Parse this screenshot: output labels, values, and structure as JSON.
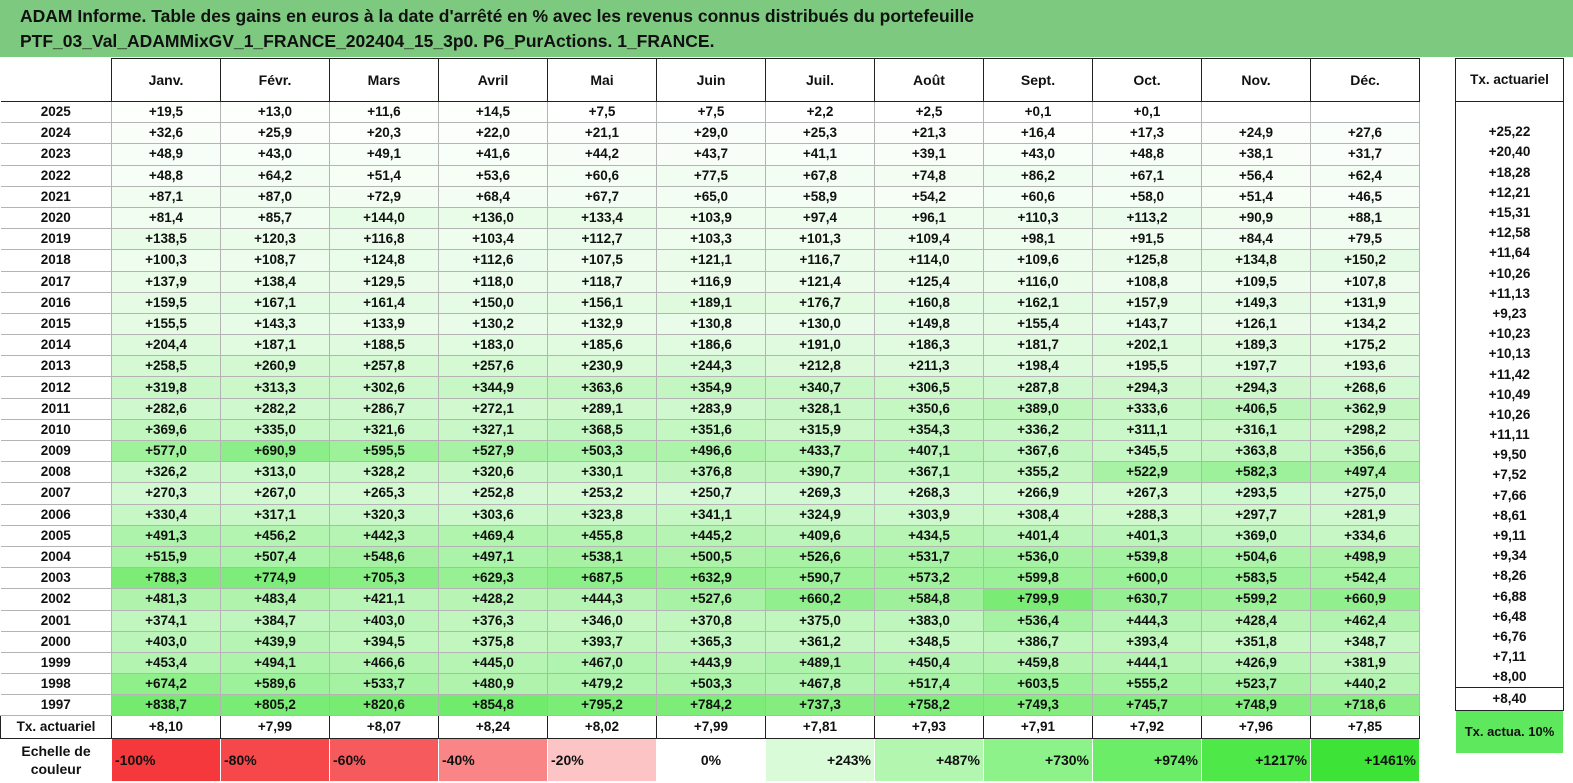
{
  "title": {
    "line1": "ADAM Informe. Table des gains en euros à la date d'arrêté en % avec les revenus connus distribués du portefeuille",
    "line2": "PTF_03_Val_ADAMMixGV_1_FRANCE_202404_15_3p0. P6_PurActions. 1_FRANCE."
  },
  "months": [
    "Janv.",
    "Févr.",
    "Mars",
    "Avril",
    "Mai",
    "Juin",
    "Juil.",
    "Août",
    "Sept.",
    "Oct.",
    "Nov.",
    "Déc."
  ],
  "rate_header": "Tx. actuariel",
  "rows": [
    {
      "year": "2025",
      "values": [
        "+19,5",
        "+13,0",
        "+11,6",
        "+14,5",
        "+7,5",
        "+7,5",
        "+2,2",
        "+2,5",
        "+0,1",
        "+0,1",
        "",
        ""
      ],
      "rate": ""
    },
    {
      "year": "2024",
      "values": [
        "+32,6",
        "+25,9",
        "+20,3",
        "+22,0",
        "+21,1",
        "+29,0",
        "+25,3",
        "+21,3",
        "+16,4",
        "+17,3",
        "+24,9",
        "+27,6"
      ],
      "rate": "+25,22"
    },
    {
      "year": "2023",
      "values": [
        "+48,9",
        "+43,0",
        "+49,1",
        "+41,6",
        "+44,2",
        "+43,7",
        "+41,1",
        "+39,1",
        "+43,0",
        "+48,8",
        "+38,1",
        "+31,7"
      ],
      "rate": "+20,40"
    },
    {
      "year": "2022",
      "values": [
        "+48,8",
        "+64,2",
        "+51,4",
        "+53,6",
        "+60,6",
        "+77,5",
        "+67,8",
        "+74,8",
        "+86,2",
        "+67,1",
        "+56,4",
        "+62,4"
      ],
      "rate": "+18,28"
    },
    {
      "year": "2021",
      "values": [
        "+87,1",
        "+87,0",
        "+72,9",
        "+68,4",
        "+67,7",
        "+65,0",
        "+58,9",
        "+54,2",
        "+60,6",
        "+58,0",
        "+51,4",
        "+46,5"
      ],
      "rate": "+12,21"
    },
    {
      "year": "2020",
      "values": [
        "+81,4",
        "+85,7",
        "+144,0",
        "+136,0",
        "+133,4",
        "+103,9",
        "+97,4",
        "+96,1",
        "+110,3",
        "+113,2",
        "+90,9",
        "+88,1"
      ],
      "rate": "+15,31"
    },
    {
      "year": "2019",
      "values": [
        "+138,5",
        "+120,3",
        "+116,8",
        "+103,4",
        "+112,7",
        "+103,3",
        "+101,3",
        "+109,4",
        "+98,1",
        "+91,5",
        "+84,4",
        "+79,5"
      ],
      "rate": "+12,58"
    },
    {
      "year": "2018",
      "values": [
        "+100,3",
        "+108,7",
        "+124,8",
        "+112,6",
        "+107,5",
        "+121,1",
        "+116,7",
        "+114,0",
        "+109,6",
        "+125,8",
        "+134,8",
        "+150,2"
      ],
      "rate": "+11,64"
    },
    {
      "year": "2017",
      "values": [
        "+137,9",
        "+138,4",
        "+129,5",
        "+118,0",
        "+118,7",
        "+116,9",
        "+121,4",
        "+125,4",
        "+116,0",
        "+108,8",
        "+109,5",
        "+107,8"
      ],
      "rate": "+10,26"
    },
    {
      "year": "2016",
      "values": [
        "+159,5",
        "+167,1",
        "+161,4",
        "+150,0",
        "+156,1",
        "+189,1",
        "+176,7",
        "+160,8",
        "+162,1",
        "+157,9",
        "+149,3",
        "+131,9"
      ],
      "rate": "+11,13"
    },
    {
      "year": "2015",
      "values": [
        "+155,5",
        "+143,3",
        "+133,9",
        "+130,2",
        "+132,9",
        "+130,8",
        "+130,0",
        "+149,8",
        "+155,4",
        "+143,7",
        "+126,1",
        "+134,2"
      ],
      "rate": "+9,23"
    },
    {
      "year": "2014",
      "values": [
        "+204,4",
        "+187,1",
        "+188,5",
        "+183,0",
        "+185,6",
        "+186,6",
        "+191,0",
        "+186,3",
        "+181,7",
        "+202,1",
        "+189,3",
        "+175,2"
      ],
      "rate": "+10,23"
    },
    {
      "year": "2013",
      "values": [
        "+258,5",
        "+260,9",
        "+257,8",
        "+257,6",
        "+230,9",
        "+244,3",
        "+212,8",
        "+211,3",
        "+198,4",
        "+195,5",
        "+197,7",
        "+193,6"
      ],
      "rate": "+10,13"
    },
    {
      "year": "2012",
      "values": [
        "+319,8",
        "+313,3",
        "+302,6",
        "+344,9",
        "+363,6",
        "+354,9",
        "+340,7",
        "+306,5",
        "+287,8",
        "+294,3",
        "+294,3",
        "+268,6"
      ],
      "rate": "+11,42"
    },
    {
      "year": "2011",
      "values": [
        "+282,6",
        "+282,2",
        "+286,7",
        "+272,1",
        "+289,1",
        "+283,9",
        "+328,1",
        "+350,6",
        "+389,0",
        "+333,6",
        "+406,5",
        "+362,9"
      ],
      "rate": "+10,49"
    },
    {
      "year": "2010",
      "values": [
        "+369,6",
        "+335,0",
        "+321,6",
        "+327,1",
        "+368,5",
        "+351,6",
        "+315,9",
        "+354,3",
        "+336,2",
        "+311,1",
        "+316,1",
        "+298,2"
      ],
      "rate": "+10,26"
    },
    {
      "year": "2009",
      "values": [
        "+577,0",
        "+690,9",
        "+595,5",
        "+527,9",
        "+503,3",
        "+496,6",
        "+433,7",
        "+407,1",
        "+367,6",
        "+345,5",
        "+363,8",
        "+356,6"
      ],
      "rate": "+11,11"
    },
    {
      "year": "2008",
      "values": [
        "+326,2",
        "+313,0",
        "+328,2",
        "+320,6",
        "+330,1",
        "+376,8",
        "+390,7",
        "+367,1",
        "+355,2",
        "+522,9",
        "+582,3",
        "+497,4"
      ],
      "rate": "+9,50"
    },
    {
      "year": "2007",
      "values": [
        "+270,3",
        "+267,0",
        "+265,3",
        "+252,8",
        "+253,2",
        "+250,7",
        "+269,3",
        "+268,3",
        "+266,9",
        "+267,3",
        "+293,5",
        "+275,0"
      ],
      "rate": "+7,52"
    },
    {
      "year": "2006",
      "values": [
        "+330,4",
        "+317,1",
        "+320,3",
        "+303,6",
        "+323,8",
        "+341,1",
        "+324,9",
        "+303,9",
        "+308,4",
        "+288,3",
        "+297,7",
        "+281,9"
      ],
      "rate": "+7,66"
    },
    {
      "year": "2005",
      "values": [
        "+491,3",
        "+456,2",
        "+442,3",
        "+469,4",
        "+455,8",
        "+445,2",
        "+409,6",
        "+434,5",
        "+401,4",
        "+401,3",
        "+369,0",
        "+334,6"
      ],
      "rate": "+8,61"
    },
    {
      "year": "2004",
      "values": [
        "+515,9",
        "+507,4",
        "+548,6",
        "+497,1",
        "+538,1",
        "+500,5",
        "+526,6",
        "+531,7",
        "+536,0",
        "+539,8",
        "+504,6",
        "+498,9"
      ],
      "rate": "+9,11"
    },
    {
      "year": "2003",
      "values": [
        "+788,3",
        "+774,9",
        "+705,3",
        "+629,3",
        "+687,5",
        "+632,9",
        "+590,7",
        "+573,2",
        "+599,8",
        "+600,0",
        "+583,5",
        "+542,4"
      ],
      "rate": "+9,34"
    },
    {
      "year": "2002",
      "values": [
        "+481,3",
        "+483,4",
        "+421,1",
        "+428,2",
        "+444,3",
        "+527,6",
        "+660,2",
        "+584,8",
        "+799,9",
        "+630,7",
        "+599,2",
        "+660,9"
      ],
      "rate": "+8,26"
    },
    {
      "year": "2001",
      "values": [
        "+374,1",
        "+384,7",
        "+403,0",
        "+376,3",
        "+346,0",
        "+370,8",
        "+375,0",
        "+383,0",
        "+536,4",
        "+444,3",
        "+428,4",
        "+462,4"
      ],
      "rate": "+6,88"
    },
    {
      "year": "2000",
      "values": [
        "+403,0",
        "+439,9",
        "+394,5",
        "+375,8",
        "+393,7",
        "+365,3",
        "+361,2",
        "+348,5",
        "+386,7",
        "+393,4",
        "+351,8",
        "+348,7"
      ],
      "rate": "+6,48"
    },
    {
      "year": "1999",
      "values": [
        "+453,4",
        "+494,1",
        "+466,6",
        "+445,0",
        "+467,0",
        "+443,9",
        "+489,1",
        "+450,4",
        "+459,8",
        "+444,1",
        "+426,9",
        "+381,9"
      ],
      "rate": "+6,76"
    },
    {
      "year": "1998",
      "values": [
        "+674,2",
        "+589,6",
        "+533,7",
        "+480,9",
        "+479,2",
        "+503,3",
        "+467,8",
        "+517,4",
        "+603,5",
        "+555,2",
        "+523,7",
        "+440,2"
      ],
      "rate": "+7,11"
    },
    {
      "year": "1997",
      "values": [
        "+838,7",
        "+805,2",
        "+820,6",
        "+854,8",
        "+795,2",
        "+784,2",
        "+737,3",
        "+758,2",
        "+749,3",
        "+745,7",
        "+748,9",
        "+718,6"
      ],
      "rate": "+8,00"
    }
  ],
  "footer": {
    "label": "Tx. actuariel",
    "values": [
      "+8,10",
      "+7,99",
      "+8,07",
      "+8,24",
      "+8,02",
      "+7,99",
      "+7,81",
      "+7,93",
      "+7,91",
      "+7,92",
      "+7,96",
      "+7,85"
    ],
    "rate": "+8,40"
  },
  "scale": {
    "label": "Echelle de couleur",
    "steps": [
      {
        "label": "-100%",
        "color": "#f4383c"
      },
      {
        "label": "-80%",
        "color": "#f6474b"
      },
      {
        "label": "-60%",
        "color": "#f75a5d"
      },
      {
        "label": "-40%",
        "color": "#fa8587"
      },
      {
        "label": "-20%",
        "color": "#fdc4c5"
      },
      {
        "label": "0%",
        "color": "#ffffff"
      },
      {
        "label": "+243%",
        "color": "#d9fbd7"
      },
      {
        "label": "+487%",
        "color": "#b3f6b0"
      },
      {
        "label": "+730%",
        "color": "#8ef28a"
      },
      {
        "label": "+974%",
        "color": "#6ced68"
      },
      {
        "label": "+1217%",
        "color": "#4fe849"
      },
      {
        "label": "+1461%",
        "color": "#3de336"
      }
    ],
    "rate_label": "Tx. actua. 10%"
  },
  "colors": {
    "title_bg": "#7dc97f",
    "positive_max": "#3de336",
    "negative_max": "#f4383c"
  },
  "scale_max_positive": 1461
}
